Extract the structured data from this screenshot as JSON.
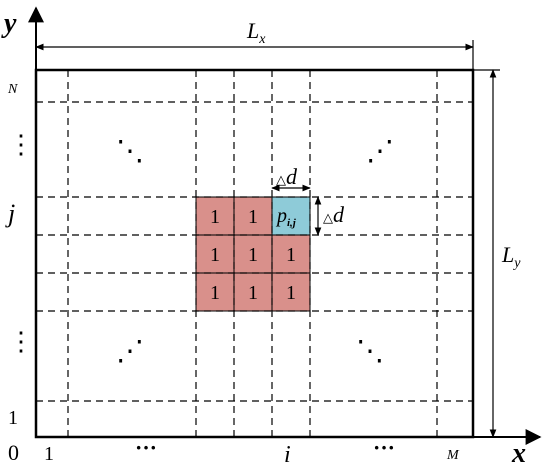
{
  "axes": {
    "y_label": "y",
    "x_label": "x",
    "origin_label": "0"
  },
  "dimensions": {
    "width_label_main": "L",
    "width_label_sub": "x",
    "height_label_main": "L",
    "height_label_sub": "y",
    "cell_size_label_delta": "△",
    "cell_size_label_var": "d"
  },
  "y_ticks": {
    "top": "N",
    "dots_upper": "⋮",
    "j": "j",
    "dots_lower": "⋮",
    "one": "1"
  },
  "x_ticks": {
    "one": "1",
    "dots_left": "···",
    "i": "i",
    "dots_right": "···",
    "right": "M"
  },
  "interior_dots": {
    "upper_left": "⋱",
    "upper_right": "⋰",
    "lower_left": "⋰",
    "lower_right": "⋱"
  },
  "cells": {
    "ones": [
      "1",
      "1",
      "1",
      "1",
      "1",
      "1",
      "1",
      "1"
    ],
    "target_main": "p",
    "target_sub": "i,j"
  },
  "colors": {
    "neighbor_fill": "#d9908b",
    "target_fill": "#8ecbd8",
    "stroke": "#000000"
  }
}
